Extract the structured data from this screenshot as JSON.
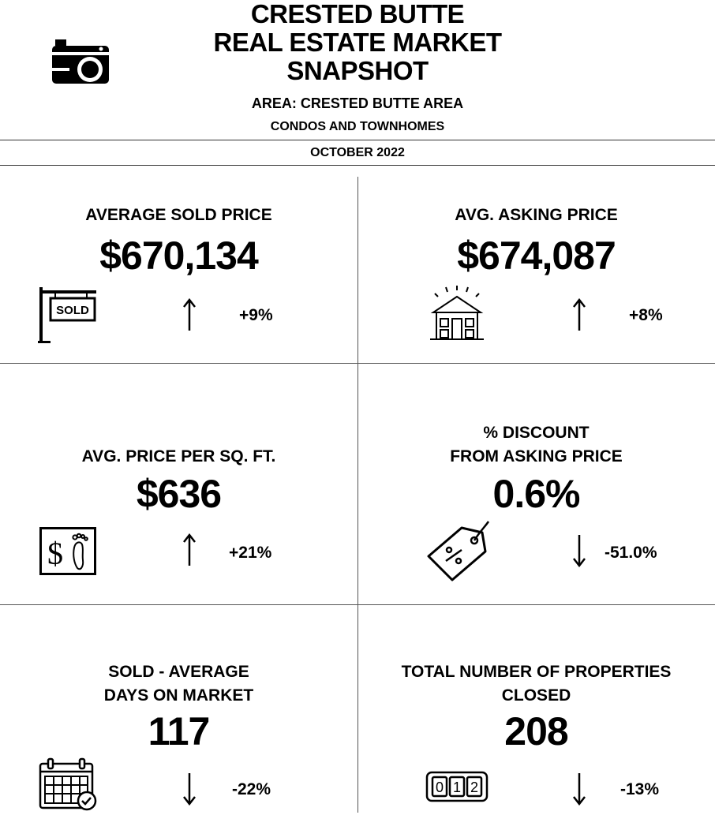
{
  "header": {
    "title_lines": [
      "CRESTED BUTTE",
      "REAL ESTATE MARKET",
      "SNAPSHOT"
    ],
    "area": "AREA:  CRESTED BUTTE AREA",
    "property_type": "CONDOS AND TOWNHOMES",
    "period": "OCTOBER 2022"
  },
  "metrics": [
    {
      "label_lines": [
        "AVERAGE SOLD PRICE"
      ],
      "value": "$670,134",
      "direction": "up",
      "change": "+9%",
      "icon": "sold-sign-icon"
    },
    {
      "label_lines": [
        "AVG. ASKING PRICE"
      ],
      "value": "$674,087",
      "direction": "up",
      "change": "+8%",
      "icon": "house-icon"
    },
    {
      "label_lines": [
        "AVG. PRICE PER SQ. FT."
      ],
      "value": "$636",
      "direction": "up",
      "change": "+21%",
      "icon": "dollar-per-foot-icon"
    },
    {
      "label_lines": [
        "% DISCOUNT",
        "FROM ASKING PRICE"
      ],
      "value": "0.6%",
      "direction": "down",
      "change": "-51.0%",
      "icon": "discount-tag-icon"
    },
    {
      "label_lines": [
        "SOLD - AVERAGE",
        "DAYS ON MARKET"
      ],
      "value": "117",
      "direction": "down",
      "change": "-22%",
      "icon": "calendar-icon"
    },
    {
      "label_lines": [
        "TOTAL NUMBER OF PROPERTIES",
        "CLOSED"
      ],
      "value": "208",
      "direction": "down",
      "change": "-13%",
      "icon": "counter-icon"
    }
  ]
}
